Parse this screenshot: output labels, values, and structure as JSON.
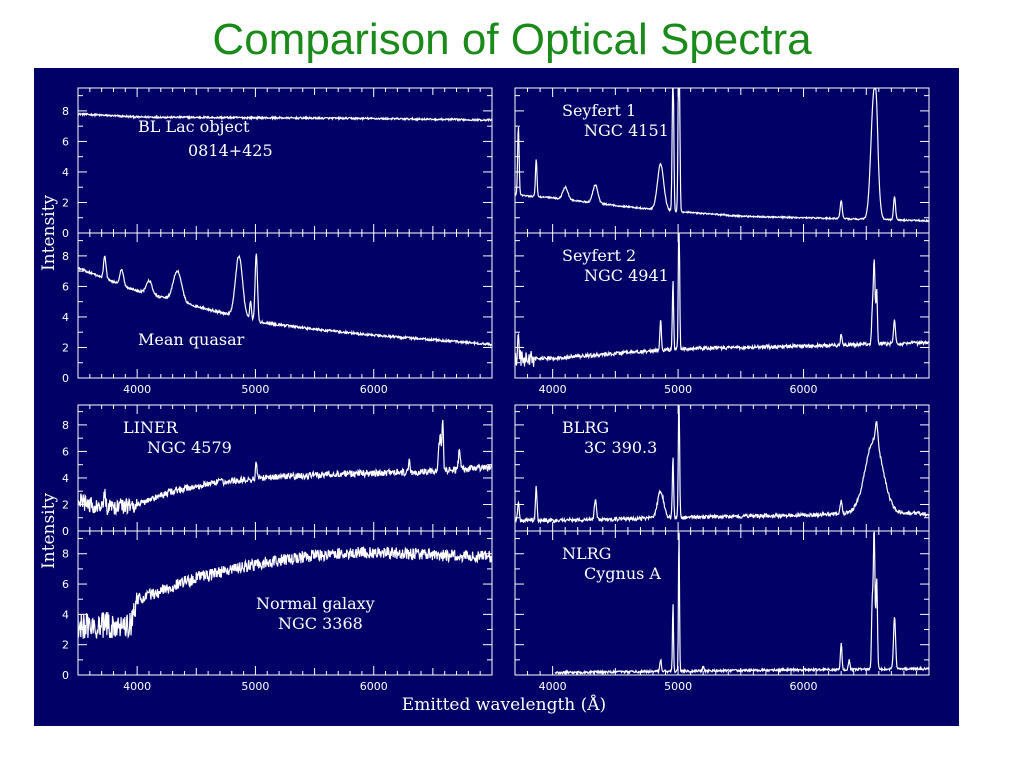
{
  "slide": {
    "title": "Comparison of Optical Spectra"
  },
  "colors": {
    "background": "#000066",
    "line": "#ffffff",
    "title": "#1a8a1a"
  },
  "chart_data": {
    "type": "line",
    "xlabel": "Emitted wavelength (Å)",
    "ylabel": "Intensity",
    "x_ticks": [
      4000,
      5000,
      6000
    ],
    "y_ticks": [
      0,
      2,
      4,
      6,
      8
    ],
    "panels": [
      {
        "id": "bl-lac",
        "label1": "BL Lac object",
        "label2": "0814+425",
        "xlim": [
          3500,
          7000
        ],
        "ylim": [
          0,
          9.5
        ],
        "continuum": [
          [
            3500,
            7.8
          ],
          [
            4000,
            7.6
          ],
          [
            5000,
            7.55
          ],
          [
            6000,
            7.5
          ],
          [
            7000,
            7.4
          ]
        ],
        "lines": [],
        "noise": 0.06
      },
      {
        "id": "mean-quasar",
        "label1": "Mean quasar",
        "label2": "",
        "xlim": [
          3500,
          7000
        ],
        "ylim": [
          0,
          9.5
        ],
        "continuum": [
          [
            3500,
            7.2
          ],
          [
            4000,
            5.7
          ],
          [
            4500,
            4.7
          ],
          [
            5000,
            3.7
          ],
          [
            5500,
            3.2
          ],
          [
            6000,
            2.8
          ],
          [
            6500,
            2.5
          ],
          [
            7000,
            2.2
          ]
        ],
        "lines": [
          [
            3727,
            1.5,
            10
          ],
          [
            3869,
            1.0,
            15
          ],
          [
            4101,
            0.9,
            25
          ],
          [
            4340,
            2.0,
            35
          ],
          [
            4861,
            4.0,
            30
          ],
          [
            4959,
            1.2,
            8
          ],
          [
            5007,
            4.5,
            10
          ]
        ],
        "noise": 0.08
      },
      {
        "id": "seyfert-1",
        "label1": "Seyfert 1",
        "label2": "NGC 4151",
        "xlim": [
          3700,
          7000
        ],
        "ylim": [
          0,
          9.5
        ],
        "continuum": [
          [
            3700,
            2.5
          ],
          [
            4000,
            2.3
          ],
          [
            4500,
            1.8
          ],
          [
            5000,
            1.4
          ],
          [
            5500,
            1.1
          ],
          [
            6000,
            1.0
          ],
          [
            6500,
            0.9
          ],
          [
            7000,
            0.8
          ]
        ],
        "lines": [
          [
            3727,
            4.5,
            6
          ],
          [
            3869,
            2.5,
            6
          ],
          [
            4101,
            0.8,
            20
          ],
          [
            4340,
            1.2,
            20
          ],
          [
            4861,
            3.0,
            25
          ],
          [
            4959,
            10,
            6
          ],
          [
            5007,
            14,
            6
          ],
          [
            6300,
            1.2,
            8
          ],
          [
            6563,
            8.5,
            25
          ],
          [
            6583,
            1.5,
            10
          ],
          [
            6725,
            1.5,
            8
          ]
        ],
        "noise": 0.05
      },
      {
        "id": "seyfert-2",
        "label1": "Seyfert 2",
        "label2": "NGC 4941",
        "xlim": [
          3700,
          7000
        ],
        "ylim": [
          0,
          9.5
        ],
        "continuum": [
          [
            3700,
            1.2
          ],
          [
            4000,
            1.3
          ],
          [
            4500,
            1.6
          ],
          [
            5000,
            1.9
          ],
          [
            5500,
            2.0
          ],
          [
            6000,
            2.1
          ],
          [
            6500,
            2.2
          ],
          [
            7000,
            2.3
          ]
        ],
        "lines": [
          [
            3727,
            1.3,
            6
          ],
          [
            4861,
            2.0,
            6
          ],
          [
            4959,
            4.5,
            5
          ],
          [
            5007,
            9.5,
            5
          ],
          [
            6300,
            0.7,
            6
          ],
          [
            6548,
            2.0,
            6
          ],
          [
            6563,
            5.5,
            7
          ],
          [
            6583,
            3.5,
            6
          ],
          [
            6725,
            1.5,
            8
          ]
        ],
        "noise": 0.12
      },
      {
        "id": "liner",
        "label1": "LINER",
        "label2": "NGC 4579",
        "xlim": [
          3500,
          7000
        ],
        "ylim": [
          0,
          9.5
        ],
        "continuum": [
          [
            3500,
            2.3
          ],
          [
            3700,
            1.7
          ],
          [
            4000,
            2.0
          ],
          [
            4300,
            3.0
          ],
          [
            4700,
            3.7
          ],
          [
            5200,
            4.1
          ],
          [
            5700,
            4.3
          ],
          [
            6200,
            4.4
          ],
          [
            6500,
            4.5
          ],
          [
            7000,
            4.8
          ]
        ],
        "lines": [
          [
            3727,
            1.0,
            8
          ],
          [
            5007,
            1.2,
            6
          ],
          [
            6300,
            0.8,
            6
          ],
          [
            6548,
            1.5,
            6
          ],
          [
            6563,
            2.5,
            7
          ],
          [
            6583,
            4.0,
            6
          ],
          [
            6725,
            1.5,
            8
          ]
        ],
        "noise": 0.25
      },
      {
        "id": "normal-galaxy",
        "label1": "Normal galaxy",
        "label2": "NGC 3368",
        "xlim": [
          3500,
          7000
        ],
        "ylim": [
          0,
          9.5
        ],
        "continuum": [
          [
            3650,
            3.2
          ],
          [
            3950,
            3.4
          ],
          [
            4000,
            5.0
          ],
          [
            4500,
            6.4
          ],
          [
            5000,
            7.3
          ],
          [
            5500,
            7.9
          ],
          [
            6000,
            8.1
          ],
          [
            6500,
            7.9
          ],
          [
            7000,
            7.8
          ]
        ],
        "lines": [],
        "noise": 0.4
      },
      {
        "id": "blrg",
        "label1": "BLRG",
        "label2": "3C 390.3",
        "xlim": [
          3700,
          7000
        ],
        "ylim": [
          0,
          9.5
        ],
        "continuum": [
          [
            3700,
            0.8
          ],
          [
            4000,
            0.8
          ],
          [
            4500,
            0.9
          ],
          [
            5000,
            1.0
          ],
          [
            5500,
            1.1
          ],
          [
            6000,
            1.2
          ],
          [
            6500,
            1.4
          ],
          [
            7000,
            1.3
          ]
        ],
        "lines": [
          [
            3727,
            1.5,
            6
          ],
          [
            3869,
            2.5,
            6
          ],
          [
            4340,
            1.5,
            8
          ],
          [
            4861,
            2.0,
            25
          ],
          [
            4959,
            4.5,
            5
          ],
          [
            5007,
            9.5,
            5
          ],
          [
            6300,
            1.0,
            8
          ],
          [
            6563,
            5.5,
            70
          ],
          [
            6583,
            1.5,
            10
          ]
        ],
        "noise": 0.15
      },
      {
        "id": "nlrg",
        "label1": "NLRG",
        "label2": "Cygnus A",
        "xlim": [
          3700,
          7000
        ],
        "ylim": [
          0,
          9.5
        ],
        "continuum": [
          [
            4000,
            0.15
          ],
          [
            5000,
            0.25
          ],
          [
            6000,
            0.35
          ],
          [
            7000,
            0.4
          ]
        ],
        "lines": [
          [
            4861,
            0.8,
            6
          ],
          [
            4959,
            4.5,
            4
          ],
          [
            5007,
            9.5,
            4
          ],
          [
            5200,
            0.3,
            6
          ],
          [
            6300,
            1.8,
            6
          ],
          [
            6364,
            0.6,
            6
          ],
          [
            6548,
            4.5,
            6
          ],
          [
            6563,
            9.5,
            6
          ],
          [
            6583,
            6.0,
            6
          ],
          [
            6725,
            3.5,
            8
          ]
        ],
        "xstart": 4020,
        "noise": 0.08
      }
    ]
  }
}
